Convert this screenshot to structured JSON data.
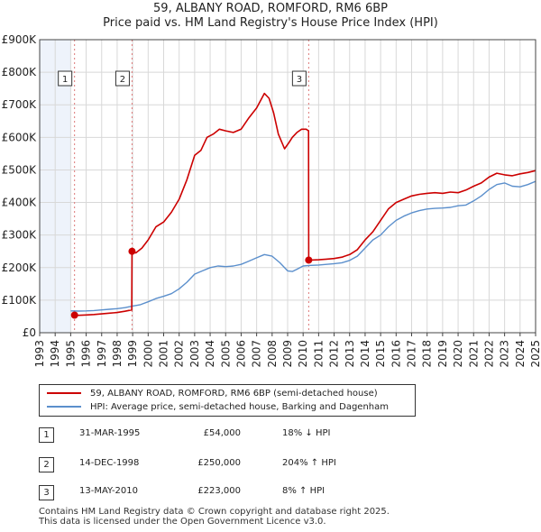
{
  "title_line1": "59, ALBANY ROAD, ROMFORD, RM6 6BP",
  "title_line2": "Price paid vs. HM Land Registry's House Price Index (HPI)",
  "chart_data": {
    "type": "line",
    "ylim": [
      0,
      900000
    ],
    "xlim": [
      1993,
      2025
    ],
    "y_ticks": [
      0,
      100000,
      200000,
      300000,
      400000,
      500000,
      600000,
      700000,
      800000,
      900000
    ],
    "y_tick_labels": [
      "£0",
      "£100K",
      "£200K",
      "£300K",
      "£400K",
      "£500K",
      "£600K",
      "£700K",
      "£800K",
      "£900K"
    ],
    "x_tick_labels": [
      "1993",
      "1994",
      "1995",
      "1996",
      "1997",
      "1998",
      "1999",
      "2000",
      "2001",
      "2002",
      "2003",
      "2004",
      "2005",
      "2006",
      "2007",
      "2008",
      "2009",
      "2010",
      "2011",
      "2012",
      "2013",
      "2014",
      "2015",
      "2016",
      "2017",
      "2018",
      "2019",
      "2020",
      "2021",
      "2022",
      "2023",
      "2024",
      "2025"
    ],
    "colors": {
      "property": "#cc0000",
      "hpi": "#5b8fcc",
      "grid": "#d8d8d8",
      "shade": "#eef3fb",
      "marker_line": "#dd7777"
    },
    "series": [
      {
        "name": "59, ALBANY ROAD, ROMFORD, RM6 6BP (semi-detached house)",
        "x": [
          1995.25,
          1995.5,
          1996,
          1996.5,
          1997,
          1997.5,
          1998,
          1998.5,
          1998.94,
          1998.96,
          1999.2,
          1999.6,
          2000,
          2000.5,
          2001,
          2001.5,
          2002,
          2002.5,
          2003,
          2003.4,
          2003.8,
          2004.2,
          2004.6,
          2005,
          2005.5,
          2006,
          2006.5,
          2007,
          2007.5,
          2007.8,
          2008.1,
          2008.4,
          2008.8,
          2009.1,
          2009.3,
          2009.6,
          2009.9,
          2010.2,
          2010.35,
          2010.36,
          2011,
          2011.5,
          2012,
          2012.5,
          2013,
          2013.5,
          2014,
          2014.5,
          2015,
          2015.5,
          2016,
          2016.5,
          2017,
          2017.5,
          2018,
          2018.5,
          2019,
          2019.5,
          2020,
          2020.5,
          2021,
          2021.5,
          2022,
          2022.5,
          2023,
          2023.5,
          2024,
          2024.5,
          2025
        ],
        "values": [
          54000,
          53500,
          54500,
          56000,
          58000,
          60000,
          62000,
          66000,
          70000,
          250000,
          245000,
          260000,
          285000,
          325000,
          340000,
          370000,
          410000,
          470000,
          545000,
          560000,
          600000,
          610000,
          625000,
          620000,
          615000,
          625000,
          660000,
          690000,
          735000,
          720000,
          675000,
          610000,
          565000,
          585000,
          600000,
          615000,
          625000,
          625000,
          620000,
          223000,
          224000,
          226000,
          228000,
          232000,
          240000,
          255000,
          285000,
          310000,
          345000,
          380000,
          400000,
          410000,
          420000,
          425000,
          428000,
          430000,
          428000,
          432000,
          430000,
          438000,
          450000,
          460000,
          478000,
          490000,
          485000,
          482000,
          488000,
          492000,
          498000
        ]
      },
      {
        "name": "HPI: Average price, semi-detached house, Barking and Dagenham",
        "x": [
          1995,
          1995.5,
          1996,
          1996.5,
          1997,
          1997.5,
          1998,
          1998.5,
          1999,
          1999.5,
          2000,
          2000.5,
          2001,
          2001.5,
          2002,
          2002.5,
          2003,
          2003.5,
          2004,
          2004.5,
          2005,
          2005.5,
          2006,
          2006.5,
          2007,
          2007.5,
          2008,
          2008.5,
          2009,
          2009.3,
          2009.6,
          2010,
          2010.5,
          2011,
          2011.5,
          2012,
          2012.5,
          2013,
          2013.5,
          2014,
          2014.5,
          2015,
          2015.5,
          2016,
          2016.5,
          2017,
          2017.5,
          2018,
          2018.5,
          2019,
          2019.5,
          2020,
          2020.5,
          2021,
          2021.5,
          2022,
          2022.5,
          2023,
          2023.5,
          2024,
          2024.5,
          2025
        ],
        "values": [
          67000,
          66500,
          67000,
          68000,
          70000,
          72000,
          74000,
          77000,
          82000,
          86000,
          95000,
          105000,
          112000,
          120000,
          135000,
          155000,
          180000,
          190000,
          200000,
          205000,
          203000,
          205000,
          210000,
          220000,
          230000,
          240000,
          235000,
          215000,
          190000,
          188000,
          195000,
          205000,
          207000,
          208000,
          210000,
          212000,
          215000,
          222000,
          235000,
          260000,
          285000,
          300000,
          325000,
          345000,
          358000,
          368000,
          375000,
          380000,
          382000,
          383000,
          385000,
          390000,
          392000,
          405000,
          420000,
          440000,
          455000,
          460000,
          450000,
          448000,
          455000,
          465000
        ]
      }
    ],
    "sale_markers": [
      {
        "label": "1",
        "x": 1995.25,
        "value": 54000
      },
      {
        "label": "2",
        "x": 1998.96,
        "value": 250000
      },
      {
        "label": "3",
        "x": 2010.36,
        "value": 223000
      }
    ]
  },
  "legend": {
    "property_label": "59, ALBANY ROAD, ROMFORD, RM6 6BP (semi-detached house)",
    "hpi_label": "HPI: Average price, semi-detached house, Barking and Dagenham"
  },
  "sales": [
    {
      "num": "1",
      "date": "31-MAR-1995",
      "price": "£54,000",
      "hpi": "18% ↓ HPI"
    },
    {
      "num": "2",
      "date": "14-DEC-1998",
      "price": "£250,000",
      "hpi": "204% ↑ HPI"
    },
    {
      "num": "3",
      "date": "13-MAY-2010",
      "price": "£223,000",
      "hpi": "8% ↑ HPI"
    }
  ],
  "footer_line1": "Contains HM Land Registry data © Crown copyright and database right 2025.",
  "footer_line2": "This data is licensed under the Open Government Licence v3.0."
}
